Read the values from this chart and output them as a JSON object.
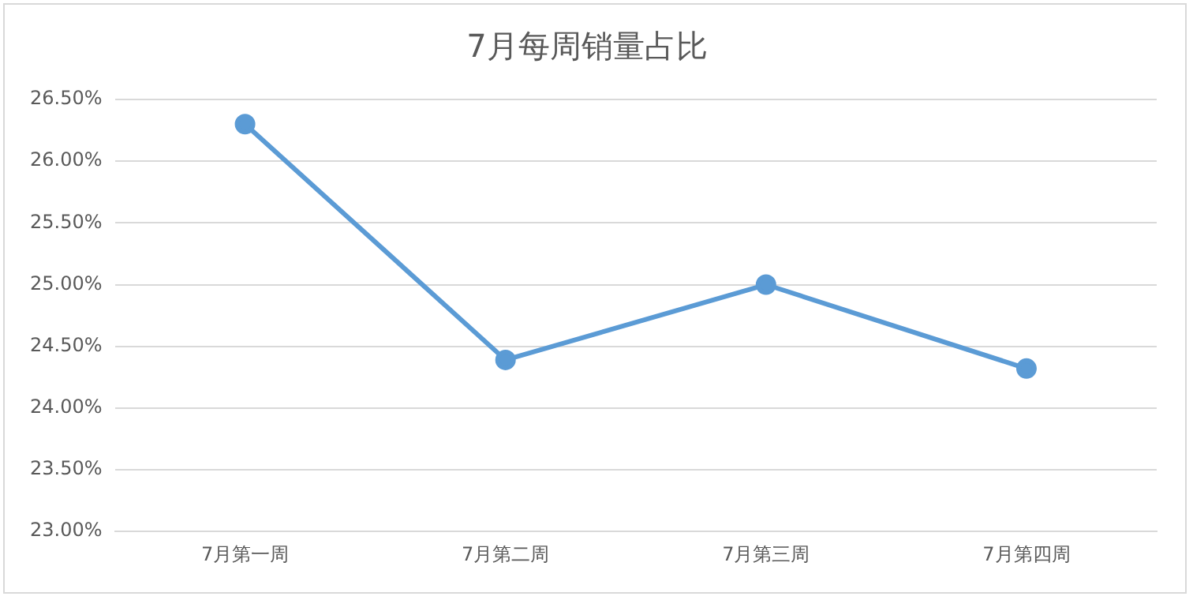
{
  "chart_data": {
    "type": "line",
    "title": "7月每周销量占比",
    "categories": [
      "7月第一周",
      "7月第二周",
      "7月第三周",
      "7月第四周"
    ],
    "series": [
      {
        "color": "#5b9bd5",
        "values": [
          26.3,
          24.39,
          25.0,
          24.32
        ]
      }
    ],
    "ylim": [
      23,
      26.5
    ],
    "yticks": [
      {
        "value": 23,
        "label": "23.00%"
      },
      {
        "value": 23.5,
        "label": "23.50%"
      },
      {
        "value": 24,
        "label": "24.00%"
      },
      {
        "value": 24.5,
        "label": "24.50%"
      },
      {
        "value": 25,
        "label": "25.00%"
      },
      {
        "value": 25.5,
        "label": "25.50%"
      },
      {
        "value": 26,
        "label": "26.00%"
      },
      {
        "value": 26.5,
        "label": "26.50%"
      }
    ],
    "grid": "y",
    "marker": "circle",
    "line_style": "solid",
    "legend": false
  }
}
